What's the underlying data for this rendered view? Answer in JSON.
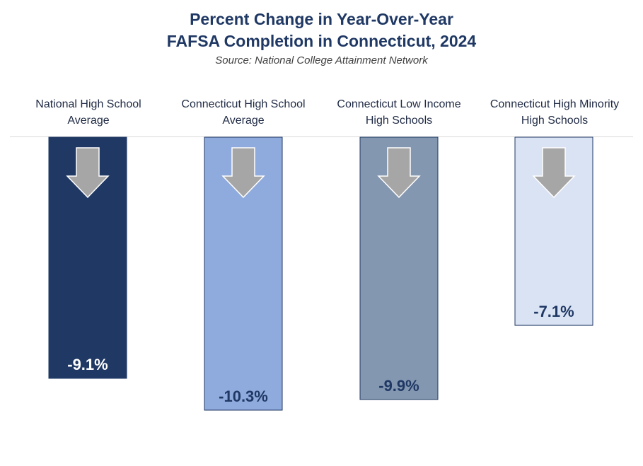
{
  "chart_data": {
    "type": "bar",
    "title_line1": "Percent Change in Year-Over-Year",
    "title_line2": "FAFSA Completion in Connecticut, 2024",
    "subtitle": "Source: National College Attainment Network",
    "categories": [
      {
        "line1": "National High School",
        "line2": "Average"
      },
      {
        "line1": "Connecticut High School",
        "line2": "Average"
      },
      {
        "line1": "Connecticut Low Income",
        "line2": "High Schools"
      },
      {
        "line1": "Connecticut High Minority",
        "line2": "High Schools"
      }
    ],
    "values": [
      -9.1,
      -10.3,
      -9.9,
      -7.1
    ],
    "labels": [
      "-9.1%",
      "-10.3%",
      "-9.9%",
      "-7.1%"
    ],
    "colors": [
      "#203864",
      "#8faadc",
      "#8497b0",
      "#dae3f3"
    ],
    "label_colors": [
      "#ffffff",
      "#1f3864",
      "#1f3864",
      "#1f3864"
    ],
    "icon": "down-arrow-icon",
    "arrow_color": "#a6a6a6",
    "ylim": [
      -10.3,
      0
    ],
    "orientation": "bars-hang-downward",
    "legend": "none",
    "grid": false
  }
}
